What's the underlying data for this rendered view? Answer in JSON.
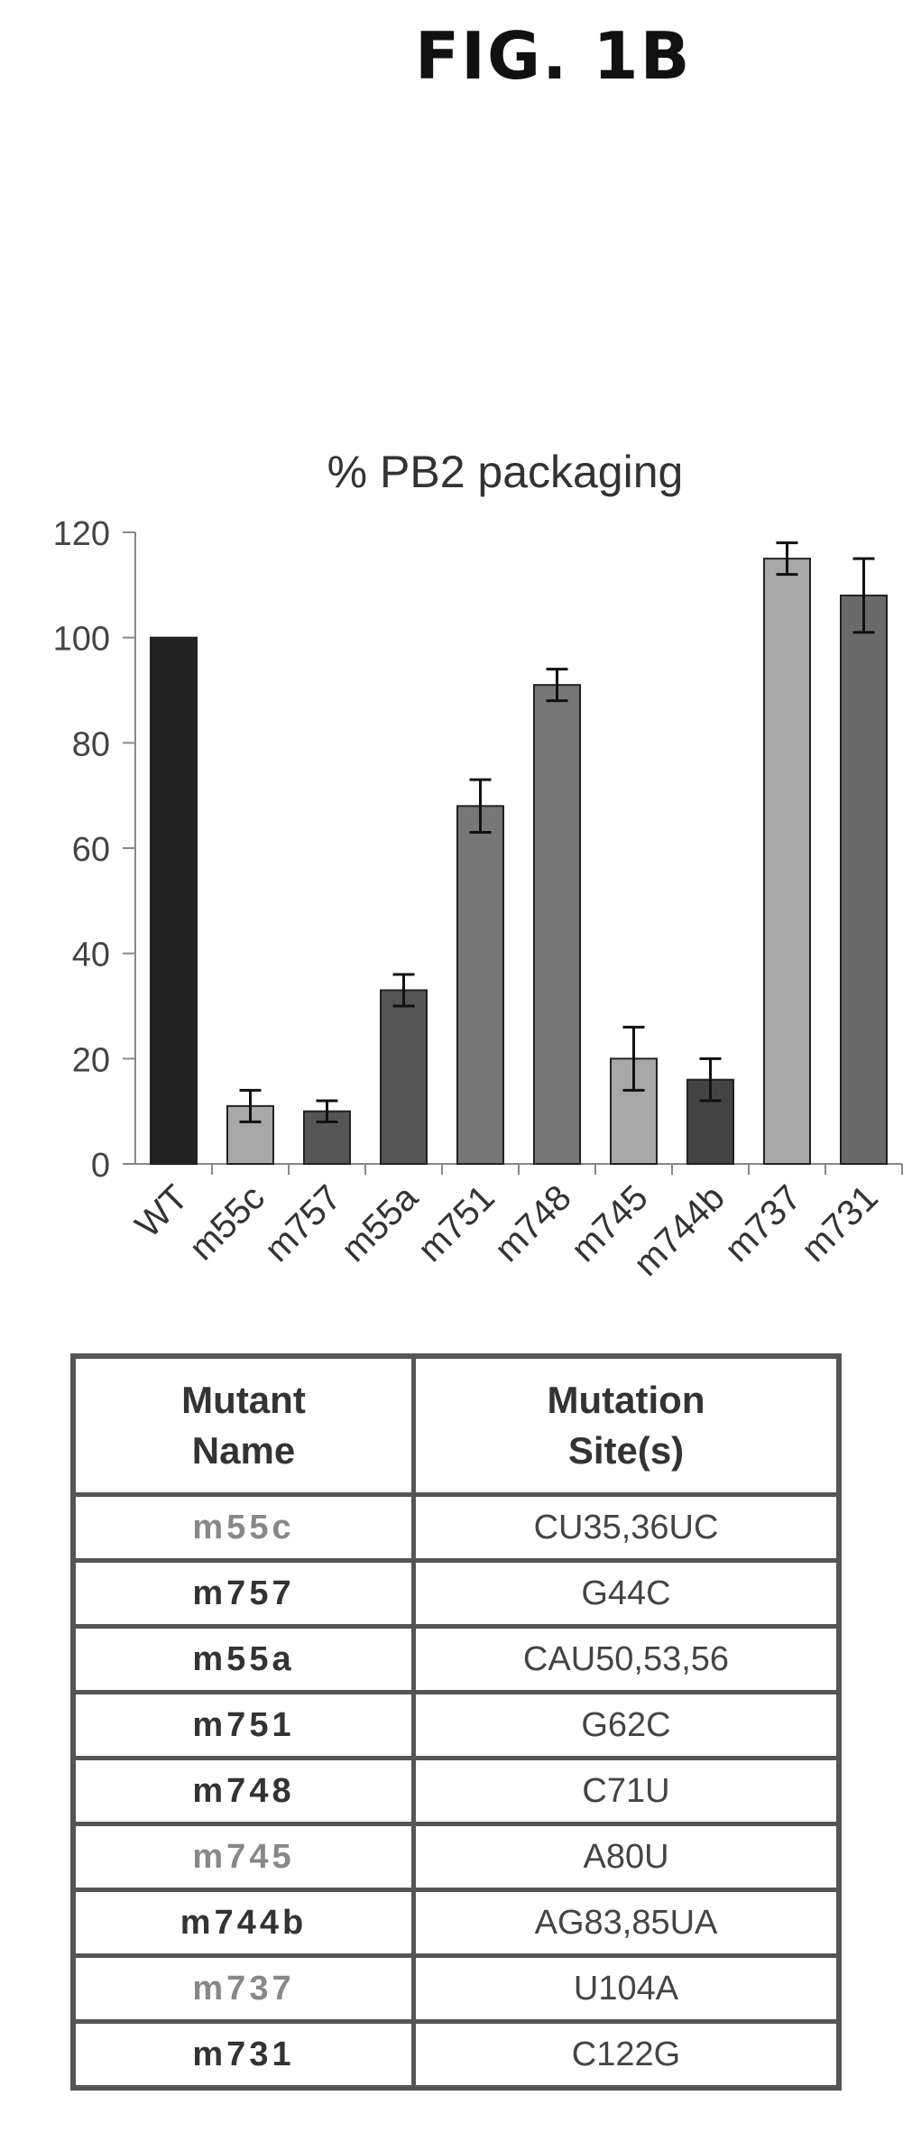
{
  "figure_label": "FIG. 1B",
  "chart_data": {
    "type": "bar",
    "title": "% PB2 packaging",
    "xlabel": "",
    "ylabel": "",
    "ylim": [
      0,
      120
    ],
    "yticks": [
      "0",
      "20",
      "40",
      "60",
      "80",
      "100",
      "120"
    ],
    "categories": [
      "WT",
      "m55c",
      "m757",
      "m55a",
      "m751",
      "m748",
      "m745",
      "m744b",
      "m737",
      "m731"
    ],
    "values": [
      100,
      11,
      10,
      33,
      68,
      91,
      20,
      16,
      115,
      108
    ],
    "error": [
      0,
      3,
      2,
      3,
      5,
      3,
      6,
      4,
      3,
      7
    ],
    "colors": [
      "#222222",
      "#a8a8a8",
      "#555555",
      "#555555",
      "#777777",
      "#777777",
      "#a8a8a8",
      "#444444",
      "#a8a8a8",
      "#6a6a6a"
    ],
    "grid": false,
    "legend": "none"
  },
  "table": {
    "headers": [
      "Mutant\nName",
      "Mutation\nSite(s)"
    ],
    "rows": [
      {
        "name": "m55c",
        "site": "CU35,36UC"
      },
      {
        "name": "m757",
        "site": "G44C"
      },
      {
        "name": "m55a",
        "site": "CAU50,53,56"
      },
      {
        "name": "m751",
        "site": "G62C"
      },
      {
        "name": "m748",
        "site": "C71U"
      },
      {
        "name": "m745",
        "site": "A80U"
      },
      {
        "name": "m744b",
        "site": "AG83,85UA"
      },
      {
        "name": "m737",
        "site": "U104A"
      },
      {
        "name": "m731",
        "site": "C122G"
      }
    ]
  }
}
